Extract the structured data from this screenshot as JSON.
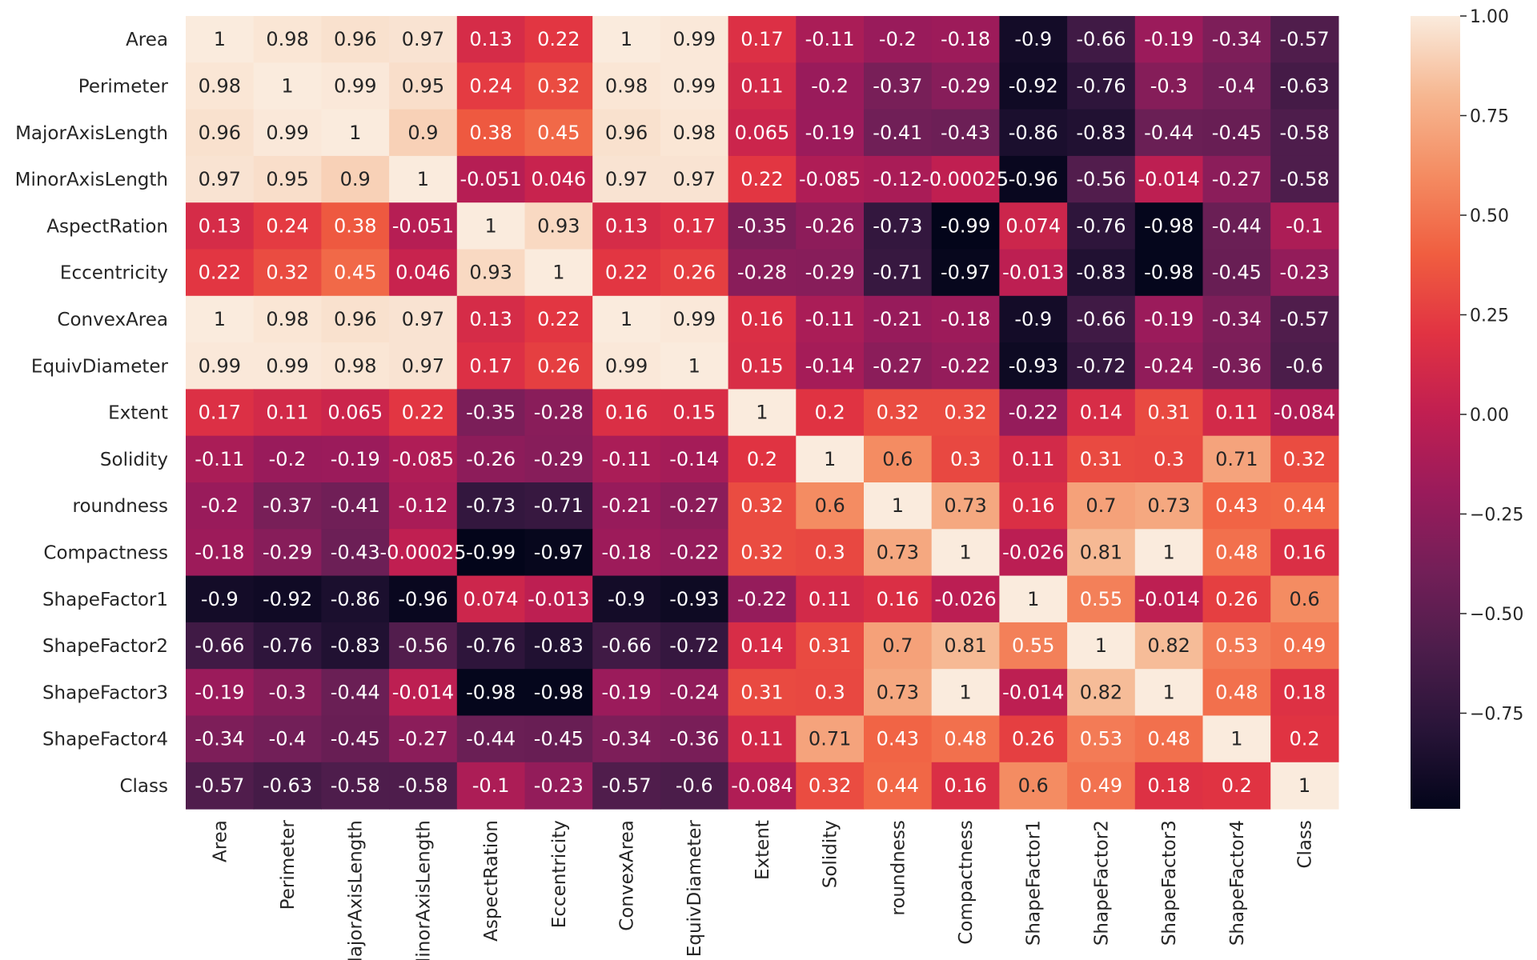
{
  "chart_data": {
    "type": "heatmap",
    "title": "",
    "colormap": "rocket",
    "vmin": -1,
    "vmax": 1,
    "labels": [
      "Area",
      "Perimeter",
      "MajorAxisLength",
      "MinorAxisLength",
      "AspectRation",
      "Eccentricity",
      "ConvexArea",
      "EquivDiameter",
      "Extent",
      "Solidity",
      "roundness",
      "Compactness",
      "ShapeFactor1",
      "ShapeFactor2",
      "ShapeFactor3",
      "ShapeFactor4",
      "Class"
    ],
    "values": [
      [
        1,
        0.98,
        0.96,
        0.97,
        0.13,
        0.22,
        1,
        0.99,
        0.17,
        -0.11,
        -0.2,
        -0.18,
        -0.9,
        -0.66,
        -0.19,
        -0.34,
        -0.57
      ],
      [
        0.98,
        1,
        0.99,
        0.95,
        0.24,
        0.32,
        0.98,
        0.99,
        0.11,
        -0.2,
        -0.37,
        -0.29,
        -0.92,
        -0.76,
        -0.3,
        -0.4,
        -0.63
      ],
      [
        0.96,
        0.99,
        1,
        0.9,
        0.38,
        0.45,
        0.96,
        0.98,
        0.065,
        -0.19,
        -0.41,
        -0.43,
        -0.86,
        -0.83,
        -0.44,
        -0.45,
        -0.58
      ],
      [
        0.97,
        0.95,
        0.9,
        1,
        -0.051,
        0.046,
        0.97,
        0.97,
        0.22,
        -0.085,
        -0.12,
        -0.00025,
        -0.96,
        -0.56,
        -0.014,
        -0.27,
        -0.58
      ],
      [
        0.13,
        0.24,
        0.38,
        -0.051,
        1,
        0.93,
        0.13,
        0.17,
        -0.35,
        -0.26,
        -0.73,
        -0.99,
        0.074,
        -0.76,
        -0.98,
        -0.44,
        -0.1
      ],
      [
        0.22,
        0.32,
        0.45,
        0.046,
        0.93,
        1,
        0.22,
        0.26,
        -0.28,
        -0.29,
        -0.71,
        -0.97,
        -0.013,
        -0.83,
        -0.98,
        -0.45,
        -0.23
      ],
      [
        1,
        0.98,
        0.96,
        0.97,
        0.13,
        0.22,
        1,
        0.99,
        0.16,
        -0.11,
        -0.21,
        -0.18,
        -0.9,
        -0.66,
        -0.19,
        -0.34,
        -0.57
      ],
      [
        0.99,
        0.99,
        0.98,
        0.97,
        0.17,
        0.26,
        0.99,
        1,
        0.15,
        -0.14,
        -0.27,
        -0.22,
        -0.93,
        -0.72,
        -0.24,
        -0.36,
        -0.6
      ],
      [
        0.17,
        0.11,
        0.065,
        0.22,
        -0.35,
        -0.28,
        0.16,
        0.15,
        1,
        0.2,
        0.32,
        0.32,
        -0.22,
        0.14,
        0.31,
        0.11,
        -0.084
      ],
      [
        -0.11,
        -0.2,
        -0.19,
        -0.085,
        -0.26,
        -0.29,
        -0.11,
        -0.14,
        0.2,
        1,
        0.6,
        0.3,
        0.11,
        0.31,
        0.3,
        0.71,
        0.32
      ],
      [
        -0.2,
        -0.37,
        -0.41,
        -0.12,
        -0.73,
        -0.71,
        -0.21,
        -0.27,
        0.32,
        0.6,
        1,
        0.73,
        0.16,
        0.7,
        0.73,
        0.43,
        0.44
      ],
      [
        -0.18,
        -0.29,
        -0.43,
        -0.00025,
        -0.99,
        -0.97,
        -0.18,
        -0.22,
        0.32,
        0.3,
        0.73,
        1,
        -0.026,
        0.81,
        1,
        0.48,
        0.16
      ],
      [
        -0.9,
        -0.92,
        -0.86,
        -0.96,
        0.074,
        -0.013,
        -0.9,
        -0.93,
        -0.22,
        0.11,
        0.16,
        -0.026,
        1,
        0.55,
        -0.014,
        0.26,
        0.6
      ],
      [
        -0.66,
        -0.76,
        -0.83,
        -0.56,
        -0.76,
        -0.83,
        -0.66,
        -0.72,
        0.14,
        0.31,
        0.7,
        0.81,
        0.55,
        1,
        0.82,
        0.53,
        0.49
      ],
      [
        -0.19,
        -0.3,
        -0.44,
        -0.014,
        -0.98,
        -0.98,
        -0.19,
        -0.24,
        0.31,
        0.3,
        0.73,
        1,
        -0.014,
        0.82,
        1,
        0.48,
        0.18
      ],
      [
        -0.34,
        -0.4,
        -0.45,
        -0.27,
        -0.44,
        -0.45,
        -0.34,
        -0.36,
        0.11,
        0.71,
        0.43,
        0.48,
        0.26,
        0.53,
        0.48,
        1,
        0.2
      ],
      [
        -0.57,
        -0.63,
        -0.58,
        -0.58,
        -0.1,
        -0.23,
        -0.57,
        -0.6,
        -0.084,
        0.32,
        0.44,
        0.16,
        0.6,
        0.49,
        0.18,
        0.2,
        1
      ]
    ],
    "colorbar": {
      "ticks": [
        1.0,
        0.75,
        0.5,
        0.25,
        0.0,
        -0.25,
        -0.5,
        -0.75
      ],
      "tick_labels": [
        "1.00",
        "0.75",
        "0.50",
        "0.25",
        "0.00",
        "−0.25",
        "−0.50",
        "−0.75"
      ],
      "range": [
        -0.99,
        1.0
      ]
    }
  }
}
